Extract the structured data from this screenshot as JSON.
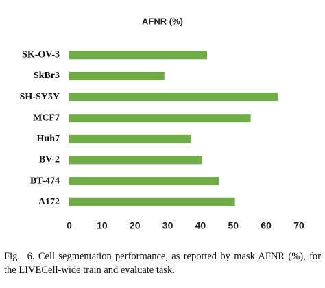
{
  "chart_data": {
    "type": "hbar",
    "title": "AFNR (%)",
    "categories": [
      "SK-OV-3",
      "SkBr3",
      "SH-SY5Y",
      "MCF7",
      "Huh7",
      "BV-2",
      "BT-474",
      "A172"
    ],
    "values": [
      42,
      29,
      63.5,
      55.3,
      37.2,
      40.5,
      45.7,
      50.5
    ],
    "color": "#70ad47",
    "xlim": [
      0,
      70
    ],
    "xticks": [
      0,
      10,
      20,
      30,
      40,
      50,
      60,
      70
    ],
    "grid": false
  },
  "caption": "Fig.  6. Cell segmentation performance, as reported by mask AFNR (%), for the LIVECell-wide train and evaluate task."
}
